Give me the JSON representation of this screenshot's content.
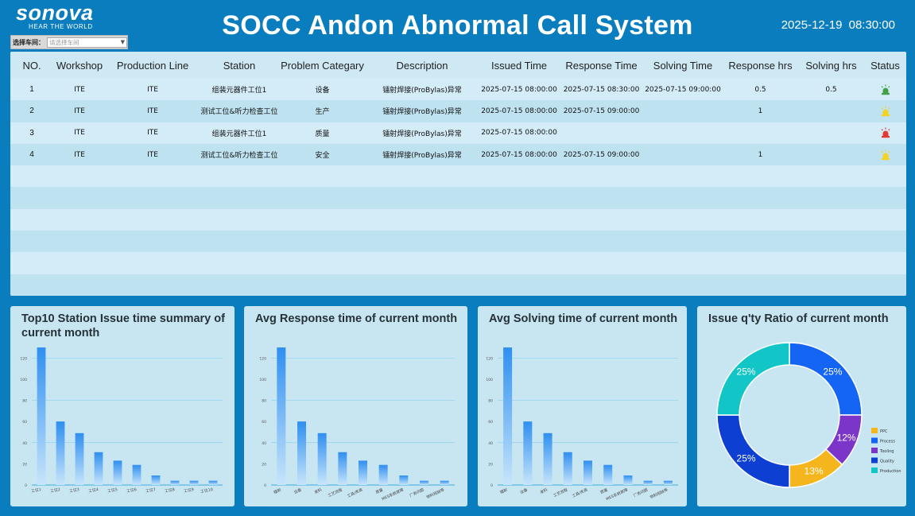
{
  "header": {
    "logo_brand": "sonova",
    "logo_tagline": "HEAR THE WORLD",
    "title": "SOCC Andon Abnormal Call System",
    "datetime": "2025-12-19  08:30:00"
  },
  "workshop_filter": {
    "label": "选择车间：",
    "placeholder": "请选择车间"
  },
  "colors": {
    "background": "#0a7dbf",
    "panel": "#c8e6f2",
    "bar_top": "#2f8ff0",
    "bar_bottom": "#c7e5fb",
    "lamp_green": "#43a047",
    "lamp_yellow": "#f4d21f",
    "lamp_red": "#e53935"
  },
  "table": {
    "columns": [
      "NO.",
      "Workshop",
      "Production Line",
      "Station",
      "Problem Categary",
      "Description",
      "Issued Time",
      "Response Time",
      "Solving Time",
      "Response hrs",
      "Solving hrs",
      "Status"
    ],
    "rows": [
      {
        "no": "1",
        "workshop": "ITE",
        "line": "ITE",
        "station": "组装元器件工位1",
        "category": "设备",
        "description": "镭射焊接(ProBylas)异常",
        "issued": "2025-07-15 08:00:00",
        "response": "2025-07-15 08:30:00",
        "solving": "2025-07-15 09:00:00",
        "response_hrs": "0.5",
        "solving_hrs": "0.5",
        "status": "green-lamp-icon"
      },
      {
        "no": "2",
        "workshop": "ITE",
        "line": "ITE",
        "station": "测试工位&听力检查工位",
        "category": "生产",
        "description": "镭射焊接(ProBylas)异常",
        "issued": "2025-07-15 08:00:00",
        "response": "2025-07-15 09:00:00",
        "solving": "",
        "response_hrs": "1",
        "solving_hrs": "",
        "status": "yellow-lamp-icon"
      },
      {
        "no": "3",
        "workshop": "ITE",
        "line": "ITE",
        "station": "组装元器件工位1",
        "category": "质量",
        "description": "镭射焊接(ProBylas)异常",
        "issued": "2025-07-15 08:00:00",
        "response": "",
        "solving": "",
        "response_hrs": "",
        "solving_hrs": "",
        "status": "red-lamp-icon"
      },
      {
        "no": "4",
        "workshop": "ITE",
        "line": "ITE",
        "station": "测试工位&听力检查工位",
        "category": "安全",
        "description": "镭射焊接(ProBylas)异常",
        "issued": "2025-07-15 08:00:00",
        "response": "2025-07-15 09:00:00",
        "solving": "",
        "response_hrs": "1",
        "solving_hrs": "",
        "status": "yellow-lamp-icon"
      }
    ]
  },
  "chart_data": [
    {
      "type": "bar",
      "title": "Top10 Station Issue time summary of current month",
      "categories": [
        "工位1",
        "工位2",
        "工位3",
        "工位4",
        "工位5",
        "工位6",
        "工位7",
        "工位8",
        "工位9",
        "工位10"
      ],
      "values": [
        130,
        60,
        49,
        31,
        23,
        19,
        9,
        4,
        4,
        4
      ],
      "yticks": [
        "0",
        "20",
        "40",
        "60",
        "80",
        "100",
        "120"
      ],
      "ylim": [
        0,
        130
      ],
      "grid": true
    },
    {
      "type": "bar",
      "title": "Avg Response time of current month",
      "categories": [
        "镭射",
        "设备",
        "来料",
        "工艺流程",
        "工具/夹具",
        "质量",
        "MES系统故障",
        "厂务问题",
        "物料短缺等"
      ],
      "values": [
        130,
        60,
        49,
        31,
        23,
        19,
        9,
        4,
        4
      ],
      "yticks": [
        "0",
        "20",
        "40",
        "60",
        "80",
        "100",
        "120"
      ],
      "ylim": [
        0,
        130
      ],
      "grid": true
    },
    {
      "type": "bar",
      "title": "Avg Solving time of current month",
      "categories": [
        "镭射",
        "设备",
        "来料",
        "工艺流程",
        "工具/夹具",
        "质量",
        "MES系统故障",
        "厂务问题",
        "物料短缺等"
      ],
      "values": [
        130,
        60,
        49,
        31,
        23,
        19,
        9,
        4,
        4
      ],
      "yticks": [
        "0",
        "20",
        "40",
        "60",
        "80",
        "100",
        "120"
      ],
      "ylim": [
        0,
        130
      ],
      "grid": true
    },
    {
      "type": "pie",
      "title": "Issue q'ty Ratio of current month",
      "labels": [
        "PPC",
        "Process",
        "Tooling",
        "Quality",
        "Production"
      ],
      "values": [
        13,
        25,
        12,
        25,
        25
      ],
      "value_labels": [
        "13%",
        "25%",
        "12%",
        "25%",
        "25%"
      ],
      "colors": [
        "#f5b51d",
        "#1565f5",
        "#7b35c9",
        "#0d3fd3",
        "#12c6c8"
      ],
      "legend": "right"
    }
  ]
}
